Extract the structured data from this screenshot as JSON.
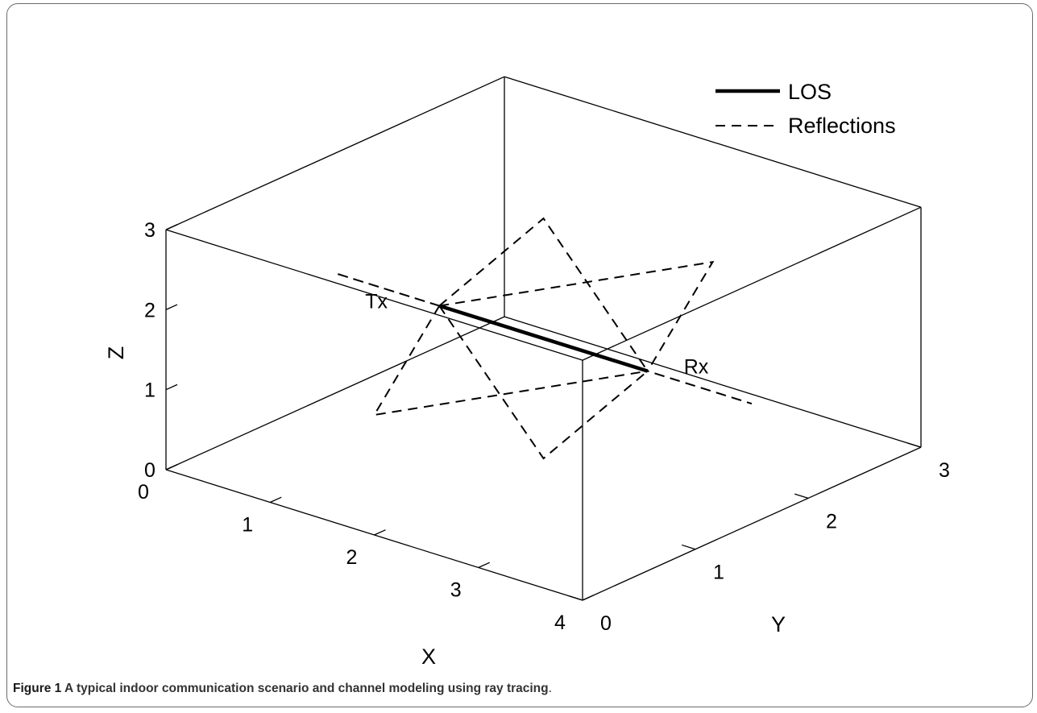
{
  "caption": {
    "figure_label": "Figure 1",
    "text": " A typical indoor communication scenario and channel modeling using ray tracing",
    "end": "."
  },
  "chart_data": {
    "type": "line",
    "projection": "3d",
    "title": "",
    "xlabel": "X",
    "ylabel": "Y",
    "zlabel": "Z",
    "xlim": [
      0,
      4
    ],
    "ylim": [
      0,
      3
    ],
    "zlim": [
      0,
      3
    ],
    "xticks": [
      "0",
      "1",
      "2",
      "3",
      "4"
    ],
    "yticks": [
      "0",
      "1",
      "2",
      "3"
    ],
    "zticks": [
      "0",
      "1",
      "2",
      "3"
    ],
    "grid": false,
    "box": true,
    "legend": {
      "position": "top-right",
      "entries": [
        {
          "label": "LOS",
          "style": "solid"
        },
        {
          "label": "Reflections",
          "style": "dashed"
        }
      ]
    },
    "annotations": [
      {
        "text": "Tx",
        "at": [
          1.0,
          1.5,
          1.5
        ]
      },
      {
        "text": "Rx",
        "at": [
          3.0,
          1.5,
          1.5
        ]
      }
    ],
    "series": [
      {
        "name": "LOS",
        "style": "solid",
        "color": "#000000",
        "points": [
          [
            1.0,
            1.5,
            1.5
          ],
          [
            3.0,
            1.5,
            1.5
          ]
        ]
      },
      {
        "name": "Reflections",
        "style": "dashed",
        "color": "#000000",
        "paths": [
          [
            [
              1.0,
              1.5,
              1.5
            ],
            [
              2.0,
              1.5,
              3.0
            ],
            [
              3.0,
              1.5,
              1.5
            ]
          ],
          [
            [
              1.0,
              1.5,
              1.5
            ],
            [
              2.0,
              1.5,
              0.0
            ],
            [
              3.0,
              1.5,
              1.5
            ]
          ],
          [
            [
              1.0,
              1.5,
              1.5
            ],
            [
              2.0,
              3.0,
              1.5
            ],
            [
              3.0,
              1.5,
              1.5
            ]
          ],
          [
            [
              1.0,
              1.5,
              1.5
            ],
            [
              2.0,
              0.0,
              1.5
            ],
            [
              3.0,
              1.5,
              1.5
            ]
          ],
          [
            [
              1.0,
              1.5,
              1.5
            ],
            [
              0.0,
              1.5,
              1.5
            ],
            [
              3.0,
              1.5,
              1.5
            ]
          ],
          [
            [
              1.0,
              1.5,
              1.5
            ],
            [
              4.0,
              1.5,
              1.5
            ],
            [
              3.0,
              1.5,
              1.5
            ]
          ]
        ]
      }
    ]
  }
}
